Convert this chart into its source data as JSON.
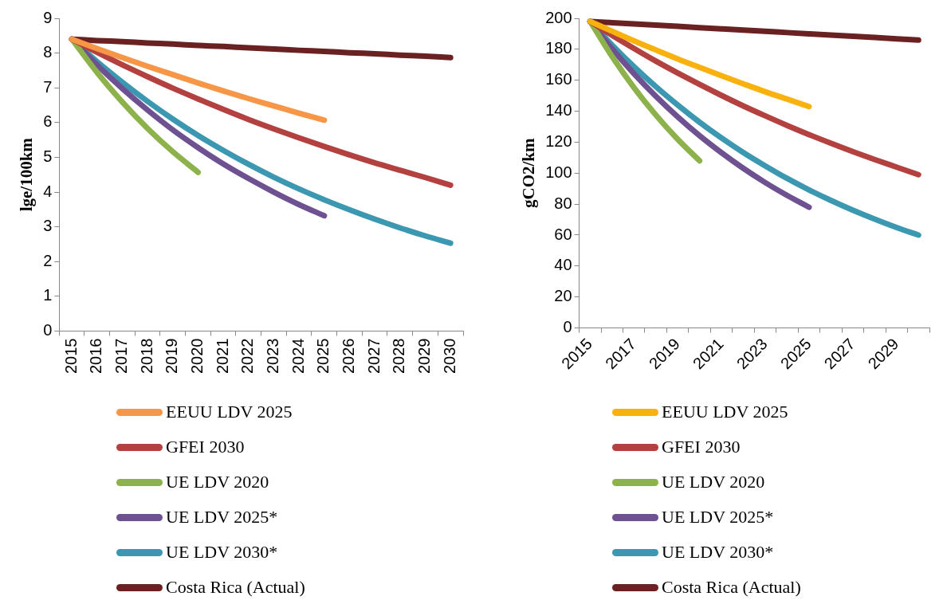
{
  "chart_data": [
    {
      "type": "line",
      "ylabel": "lge/100km",
      "categories": [
        "2015",
        "2016",
        "2017",
        "2018",
        "2019",
        "2020",
        "2021",
        "2022",
        "2023",
        "2024",
        "2025",
        "2026",
        "2027",
        "2028",
        "2029",
        "2030"
      ],
      "ylim": [
        0,
        9
      ],
      "yticks": [
        0,
        1,
        2,
        3,
        4,
        5,
        6,
        7,
        8,
        9
      ],
      "grid": false,
      "legend": "bottom",
      "marker": "none",
      "line_style": "solid",
      "series": [
        {
          "name": "EEUU LDV 2025",
          "color": "#f79646",
          "values": [
            8.4,
            8.13,
            7.87,
            7.62,
            7.38,
            7.14,
            6.91,
            6.69,
            6.48,
            6.27,
            6.07,
            null,
            null,
            null,
            null,
            null
          ]
        },
        {
          "name": "GFEI 2030",
          "color": "#b3413f",
          "values": [
            8.4,
            8.02,
            7.66,
            7.32,
            6.99,
            6.68,
            6.38,
            6.09,
            5.82,
            5.56,
            5.31,
            5.07,
            4.84,
            4.63,
            4.42,
            4.2
          ]
        },
        {
          "name": "UE LDV 2020",
          "color": "#8db14b",
          "values": [
            8.4,
            7.44,
            6.59,
            5.83,
            5.16,
            4.57,
            null,
            null,
            null,
            null,
            null,
            null,
            null,
            null,
            null,
            null
          ]
        },
        {
          "name": "UE LDV 2025*",
          "color": "#6e5190",
          "values": [
            8.4,
            7.66,
            6.98,
            6.36,
            5.79,
            5.28,
            4.81,
            4.39,
            4.0,
            3.64,
            3.32,
            null,
            null,
            null,
            null,
            null
          ]
        },
        {
          "name": "UE LDV 2030*",
          "color": "#3b98b0",
          "values": [
            8.4,
            7.75,
            7.16,
            6.61,
            6.1,
            5.63,
            5.2,
            4.8,
            4.43,
            4.09,
            3.78,
            3.49,
            3.22,
            2.97,
            2.74,
            2.53
          ]
        },
        {
          "name": "Costa Rica (Actual)",
          "color": "#6a2121",
          "values": [
            8.4,
            8.36,
            8.33,
            8.29,
            8.26,
            8.22,
            8.19,
            8.15,
            8.12,
            8.08,
            8.05,
            8.01,
            7.98,
            7.94,
            7.91,
            7.87
          ]
        }
      ]
    },
    {
      "type": "line",
      "ylabel": "gCO2/km",
      "categories": [
        "2015",
        null,
        "2017",
        null,
        "2019",
        null,
        "2021",
        null,
        "2023",
        null,
        "2025",
        null,
        "2027",
        null,
        "2029",
        null
      ],
      "ylim": [
        0,
        200
      ],
      "yticks": [
        0,
        20,
        40,
        60,
        80,
        100,
        120,
        140,
        160,
        180,
        200
      ],
      "grid": false,
      "legend": "bottom",
      "marker": "none",
      "line_style": "solid",
      "series": [
        {
          "name": "EEUU LDV 2025",
          "color": "#f9b10e",
          "values": [
            198,
            191.7,
            185.5,
            179.6,
            173.8,
            168.3,
            162.9,
            157.7,
            152.6,
            147.8,
            143,
            null,
            null,
            null,
            null,
            null
          ]
        },
        {
          "name": "GFEI 2030",
          "color": "#b3413f",
          "values": [
            198,
            189.1,
            180.6,
            172.4,
            164.7,
            157.3,
            150.2,
            143.4,
            137,
            130.8,
            124.9,
            119.3,
            113.9,
            108.8,
            103.9,
            99
          ]
        },
        {
          "name": "UE LDV 2020",
          "color": "#8db14b",
          "values": [
            198,
            175.4,
            155.3,
            137.6,
            121.9,
            108,
            null,
            null,
            null,
            null,
            null,
            null,
            null,
            null,
            null,
            null
          ]
        },
        {
          "name": "UE LDV 2025*",
          "color": "#6e5190",
          "values": [
            198,
            180.4,
            164.3,
            149.7,
            136.4,
            124.2,
            113.2,
            103.1,
            93.9,
            85.6,
            78,
            null,
            null,
            null,
            null,
            null
          ]
        },
        {
          "name": "UE LDV 2030*",
          "color": "#3b98b0",
          "values": [
            198,
            182.8,
            168.8,
            155.9,
            144,
            132.9,
            122.7,
            113.3,
            104.7,
            96.6,
            89.2,
            82.4,
            76.1,
            70.3,
            64.9,
            60
          ]
        },
        {
          "name": "Costa Rica (Actual)",
          "color": "#6a2121",
          "values": [
            198,
            197.2,
            196.4,
            195.6,
            194.8,
            194,
            193.2,
            192.4,
            191.6,
            190.8,
            190,
            189.2,
            188.4,
            187.6,
            186.8,
            186
          ]
        }
      ]
    }
  ]
}
